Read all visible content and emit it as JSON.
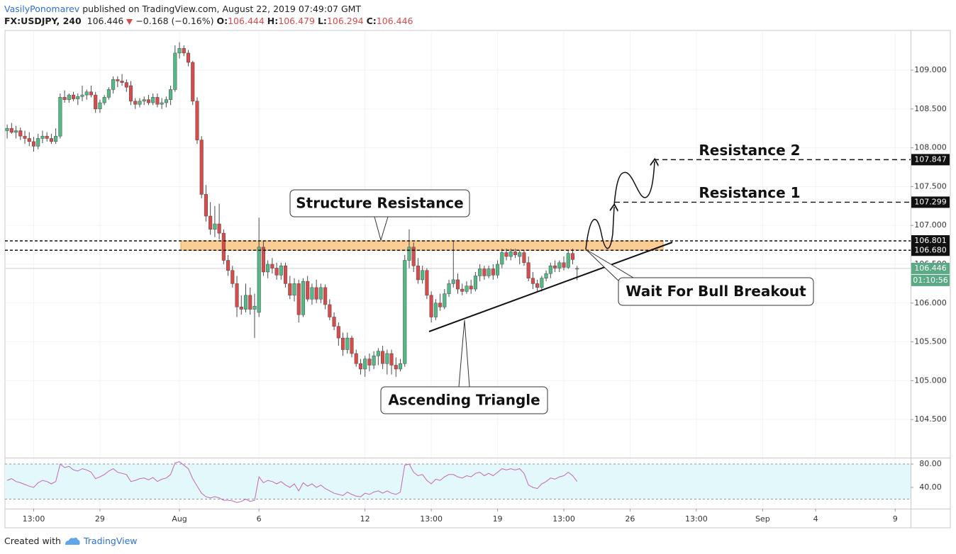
{
  "header": {
    "author": "VasilyPonomarev",
    "published": "published on TradingView.com, August 22, 2019 07:49:07 GMT",
    "symbol": "FX:USDJPY, 240",
    "change": "−0.168 (−0.16%)",
    "o": "O:",
    "h": "H:",
    "l": "L:",
    "c": "C:"
  },
  "footer": {
    "created": "Created with",
    "brand": "TradingView"
  },
  "chart_data": [
    {
      "type": "candlestick",
      "up_color": "#53b987",
      "down_color": "#d94a4a",
      "wick_color": "#4a4a4a",
      "grid": true,
      "ylim": [
        104.018,
        109.511
      ],
      "yticks": [
        {
          "value": 104.5,
          "label": "104.500"
        },
        {
          "value": 105,
          "label": "105.000"
        },
        {
          "value": 105.5,
          "label": "105.500"
        },
        {
          "value": 106,
          "label": "106.000"
        },
        {
          "value": 106.5,
          "label": "106.500"
        },
        {
          "value": 107,
          "label": "107.000"
        },
        {
          "value": 107.5,
          "label": "107.500"
        },
        {
          "value": 108,
          "label": "108.000"
        },
        {
          "value": 108.5,
          "label": "108.500"
        },
        {
          "value": 109,
          "label": "109.000"
        }
      ],
      "xlim": [
        -0.5,
        204.5
      ],
      "xticks": [
        {
          "value": 6,
          "label": "13:00"
        },
        {
          "value": 21,
          "label": "29"
        },
        {
          "value": 39,
          "label": "Aug"
        },
        {
          "value": 57,
          "label": "6"
        },
        {
          "value": 81,
          "label": "12"
        },
        {
          "value": 96,
          "label": "13:00"
        },
        {
          "value": 111,
          "label": "19"
        },
        {
          "value": 126,
          "label": "13:00"
        },
        {
          "value": 141,
          "label": "26"
        },
        {
          "value": 156,
          "label": "13:00"
        },
        {
          "value": 171,
          "label": "Sep"
        },
        {
          "value": 183,
          "label": "4"
        },
        {
          "value": 201,
          "label": "9"
        }
      ],
      "levels": [
        {
          "value": 107.847,
          "label": "107.847",
          "name": "Resistance 2"
        },
        {
          "value": 107.299,
          "label": "107.299",
          "name": "Resistance 1"
        },
        {
          "value": 106.801,
          "label": "106.801"
        },
        {
          "value": 106.68,
          "label": "106.680"
        }
      ],
      "countdown": "01:10:56",
      "annotations": [
        "Structure Resistance",
        "Ascending Triangle",
        "Wait For Bull Breakout"
      ],
      "candles": [
        [
          108.22,
          108.3,
          108.12,
          108.25
        ],
        [
          108.25,
          108.32,
          108.18,
          108.2
        ],
        [
          108.2,
          108.28,
          108.12,
          108.22
        ],
        [
          108.22,
          108.26,
          108.1,
          108.15
        ],
        [
          108.15,
          108.22,
          108.05,
          108.12
        ],
        [
          108.12,
          108.2,
          108.02,
          108.08
        ],
        [
          108.08,
          108.14,
          107.95,
          108.02
        ],
        [
          108.02,
          108.18,
          107.98,
          108.12
        ],
        [
          108.12,
          108.22,
          108.06,
          108.15
        ],
        [
          108.15,
          108.2,
          108.08,
          108.12
        ],
        [
          108.12,
          108.18,
          108.05,
          108.08
        ],
        [
          108.08,
          108.25,
          108.05,
          108.15
        ],
        [
          108.15,
          108.7,
          108.12,
          108.65
        ],
        [
          108.65,
          108.74,
          108.58,
          108.62
        ],
        [
          108.62,
          108.7,
          108.58,
          108.68
        ],
        [
          108.68,
          108.72,
          108.6,
          108.63
        ],
        [
          108.63,
          108.7,
          108.55,
          108.66
        ],
        [
          108.66,
          108.8,
          108.6,
          108.68
        ],
        [
          108.68,
          108.75,
          108.62,
          108.72
        ],
        [
          108.72,
          108.8,
          108.65,
          108.68
        ],
        [
          108.68,
          108.72,
          108.45,
          108.5
        ],
        [
          108.5,
          108.62,
          108.45,
          108.58
        ],
        [
          108.58,
          108.68,
          108.55,
          108.65
        ],
        [
          108.65,
          108.78,
          108.62,
          108.75
        ],
        [
          108.75,
          108.92,
          108.7,
          108.88
        ],
        [
          108.88,
          108.92,
          108.78,
          108.86
        ],
        [
          108.86,
          108.95,
          108.8,
          108.84
        ],
        [
          108.84,
          108.88,
          108.72,
          108.78
        ],
        [
          108.8,
          108.86,
          108.55,
          108.6
        ],
        [
          108.6,
          108.64,
          108.5,
          108.56
        ],
        [
          108.56,
          108.64,
          108.52,
          108.6
        ],
        [
          108.6,
          108.66,
          108.55,
          108.62
        ],
        [
          108.62,
          108.68,
          108.55,
          108.58
        ],
        [
          108.58,
          108.7,
          108.55,
          108.65
        ],
        [
          108.65,
          108.7,
          108.52,
          108.56
        ],
        [
          108.56,
          108.64,
          108.5,
          108.58
        ],
        [
          108.58,
          108.66,
          108.52,
          108.62
        ],
        [
          108.62,
          108.8,
          108.55,
          108.75
        ],
        [
          108.75,
          109.32,
          108.72,
          109.22
        ],
        [
          109.22,
          109.36,
          109.15,
          109.28
        ],
        [
          109.28,
          109.32,
          109.18,
          109.22
        ],
        [
          109.22,
          109.26,
          109.05,
          109.1
        ],
        [
          109.1,
          109.12,
          108.55,
          108.6
        ],
        [
          108.6,
          108.65,
          108.05,
          108.1
        ],
        [
          108.1,
          108.15,
          107.35,
          107.4
        ],
        [
          107.4,
          107.52,
          107.05,
          107.12
        ],
        [
          107.12,
          107.3,
          106.88,
          106.95
        ],
        [
          106.95,
          107.25,
          106.85,
          107.02
        ],
        [
          107.02,
          107.28,
          106.82,
          106.9
        ],
        [
          106.9,
          106.95,
          106.5,
          106.55
        ],
        [
          106.55,
          106.62,
          106.35,
          106.42
        ],
        [
          106.42,
          106.48,
          106.2,
          106.25
        ],
        [
          106.25,
          106.35,
          105.82,
          105.95
        ],
        [
          105.95,
          106.1,
          105.85,
          105.92
        ],
        [
          105.92,
          106.25,
          105.88,
          106.1
        ],
        [
          106.1,
          106.2,
          105.85,
          105.92
        ],
        [
          105.92,
          106.12,
          105.55,
          105.96
        ],
        [
          105.88,
          107.1,
          105.82,
          106.72
        ],
        [
          106.72,
          106.8,
          106.35,
          106.4
        ],
        [
          106.4,
          106.55,
          106.32,
          106.5
        ],
        [
          106.5,
          106.58,
          106.38,
          106.45
        ],
        [
          106.45,
          106.52,
          106.3,
          106.36
        ],
        [
          106.36,
          106.52,
          106.3,
          106.48
        ],
        [
          106.48,
          106.52,
          106.2,
          106.25
        ],
        [
          106.25,
          106.35,
          106.05,
          106.1
        ],
        [
          106.1,
          106.32,
          106.02,
          106.25
        ],
        [
          106.25,
          106.3,
          105.75,
          105.85
        ],
        [
          105.85,
          106.32,
          105.82,
          106.28
        ],
        [
          106.28,
          106.35,
          106.02,
          106.05
        ],
        [
          106.05,
          106.25,
          105.98,
          106.2
        ],
        [
          106.2,
          106.3,
          106.0,
          106.05
        ],
        [
          106.05,
          106.25,
          106.0,
          106.2
        ],
        [
          106.2,
          106.24,
          105.92,
          105.98
        ],
        [
          105.98,
          106.05,
          105.78,
          105.82
        ],
        [
          105.82,
          105.88,
          105.65,
          105.7
        ],
        [
          105.7,
          105.75,
          105.45,
          105.55
        ],
        [
          105.55,
          105.62,
          105.32,
          105.4
        ],
        [
          105.4,
          105.62,
          105.35,
          105.55
        ],
        [
          105.55,
          105.58,
          105.3,
          105.35
        ],
        [
          105.35,
          105.4,
          105.18,
          105.22
        ],
        [
          105.22,
          105.28,
          105.08,
          105.15
        ],
        [
          105.15,
          105.32,
          105.05,
          105.28
        ],
        [
          105.28,
          105.35,
          105.12,
          105.2
        ],
        [
          105.2,
          105.38,
          105.15,
          105.32
        ],
        [
          105.32,
          105.42,
          105.2,
          105.38
        ],
        [
          105.38,
          105.45,
          105.15,
          105.22
        ],
        [
          105.22,
          105.4,
          105.08,
          105.35
        ],
        [
          105.35,
          105.4,
          105.08,
          105.2
        ],
        [
          105.2,
          105.3,
          105.05,
          105.15
        ],
        [
          105.15,
          105.28,
          105.12,
          105.22
        ],
        [
          105.22,
          106.62,
          105.18,
          106.55
        ],
        [
          106.55,
          106.95,
          106.45,
          106.72
        ],
        [
          106.72,
          106.78,
          106.4,
          106.48
        ],
        [
          106.48,
          106.58,
          106.25,
          106.3
        ],
        [
          106.3,
          106.48,
          106.25,
          106.42
        ],
        [
          106.42,
          106.45,
          106.05,
          106.1
        ],
        [
          106.1,
          106.15,
          105.75,
          105.82
        ],
        [
          105.82,
          106.05,
          105.78,
          106.0
        ],
        [
          106.0,
          106.12,
          105.9,
          105.95
        ],
        [
          105.95,
          106.18,
          105.92,
          106.12
        ],
        [
          106.12,
          106.3,
          106.08,
          106.25
        ],
        [
          106.25,
          106.8,
          106.2,
          106.3
        ],
        [
          106.3,
          106.38,
          106.12,
          106.18
        ],
        [
          106.18,
          106.25,
          106.1,
          106.15
        ],
        [
          106.15,
          106.28,
          106.12,
          106.22
        ],
        [
          106.22,
          106.3,
          106.12,
          106.18
        ],
        [
          106.18,
          106.4,
          106.15,
          106.35
        ],
        [
          106.35,
          106.5,
          106.28,
          106.44
        ],
        [
          106.44,
          106.48,
          106.3,
          106.35
        ],
        [
          106.35,
          106.48,
          106.32,
          106.44
        ],
        [
          106.44,
          106.5,
          106.3,
          106.36
        ],
        [
          106.36,
          106.55,
          106.32,
          106.5
        ],
        [
          106.5,
          106.7,
          106.45,
          106.65
        ],
        [
          106.65,
          106.7,
          106.55,
          106.6
        ],
        [
          106.6,
          106.7,
          106.55,
          106.66
        ],
        [
          106.66,
          106.7,
          106.58,
          106.62
        ],
        [
          106.6,
          106.68,
          106.5,
          106.65
        ],
        [
          106.65,
          106.68,
          106.48,
          106.52
        ],
        [
          106.52,
          106.6,
          106.28,
          106.32
        ],
        [
          106.32,
          106.4,
          106.18,
          106.25
        ],
        [
          106.25,
          106.3,
          106.15,
          106.2
        ],
        [
          106.2,
          106.35,
          106.15,
          106.32
        ],
        [
          106.32,
          106.42,
          106.28,
          106.38
        ],
        [
          106.38,
          106.52,
          106.32,
          106.48
        ],
        [
          106.48,
          106.55,
          106.4,
          106.45
        ],
        [
          106.45,
          106.55,
          106.4,
          106.52
        ],
        [
          106.52,
          106.6,
          106.42,
          106.46
        ],
        [
          106.46,
          106.68,
          106.44,
          106.64
        ],
        [
          106.64,
          106.7,
          106.5,
          106.56
        ],
        [
          106.444,
          106.479,
          106.294,
          106.446
        ]
      ]
    },
    {
      "type": "line",
      "color": "#c565b4",
      "band_color": "#e3f8fb",
      "ylim": [
        3.6,
        88.5
      ],
      "yticks": [
        {
          "value": 80,
          "label": "80.00"
        },
        {
          "value": 40,
          "label": "40.00"
        }
      ],
      "bands": [
        20,
        80
      ],
      "values": [
        52,
        55,
        50,
        48,
        45,
        42,
        40,
        48,
        52,
        50,
        46,
        50,
        80,
        74,
        76,
        70,
        68,
        72,
        70,
        66,
        55,
        58,
        62,
        68,
        72,
        66,
        64,
        62,
        50,
        52,
        55,
        56,
        53,
        57,
        50,
        54,
        56,
        62,
        82,
        84,
        78,
        72,
        55,
        42,
        30,
        24,
        22,
        24,
        22,
        18,
        18,
        17,
        14,
        16,
        20,
        16,
        18,
        58,
        48,
        52,
        50,
        46,
        50,
        44,
        40,
        46,
        34,
        48,
        42,
        46,
        40,
        44,
        38,
        34,
        30,
        28,
        26,
        32,
        28,
        25,
        24,
        30,
        28,
        32,
        34,
        30,
        34,
        30,
        28,
        32,
        78,
        80,
        66,
        60,
        62,
        52,
        46,
        54,
        52,
        58,
        62,
        62,
        58,
        56,
        60,
        58,
        64,
        66,
        60,
        64,
        60,
        66,
        72,
        70,
        72,
        70,
        72,
        64,
        44,
        40,
        38,
        46,
        50,
        56,
        54,
        58,
        60,
        66,
        60,
        50
      ]
    }
  ]
}
